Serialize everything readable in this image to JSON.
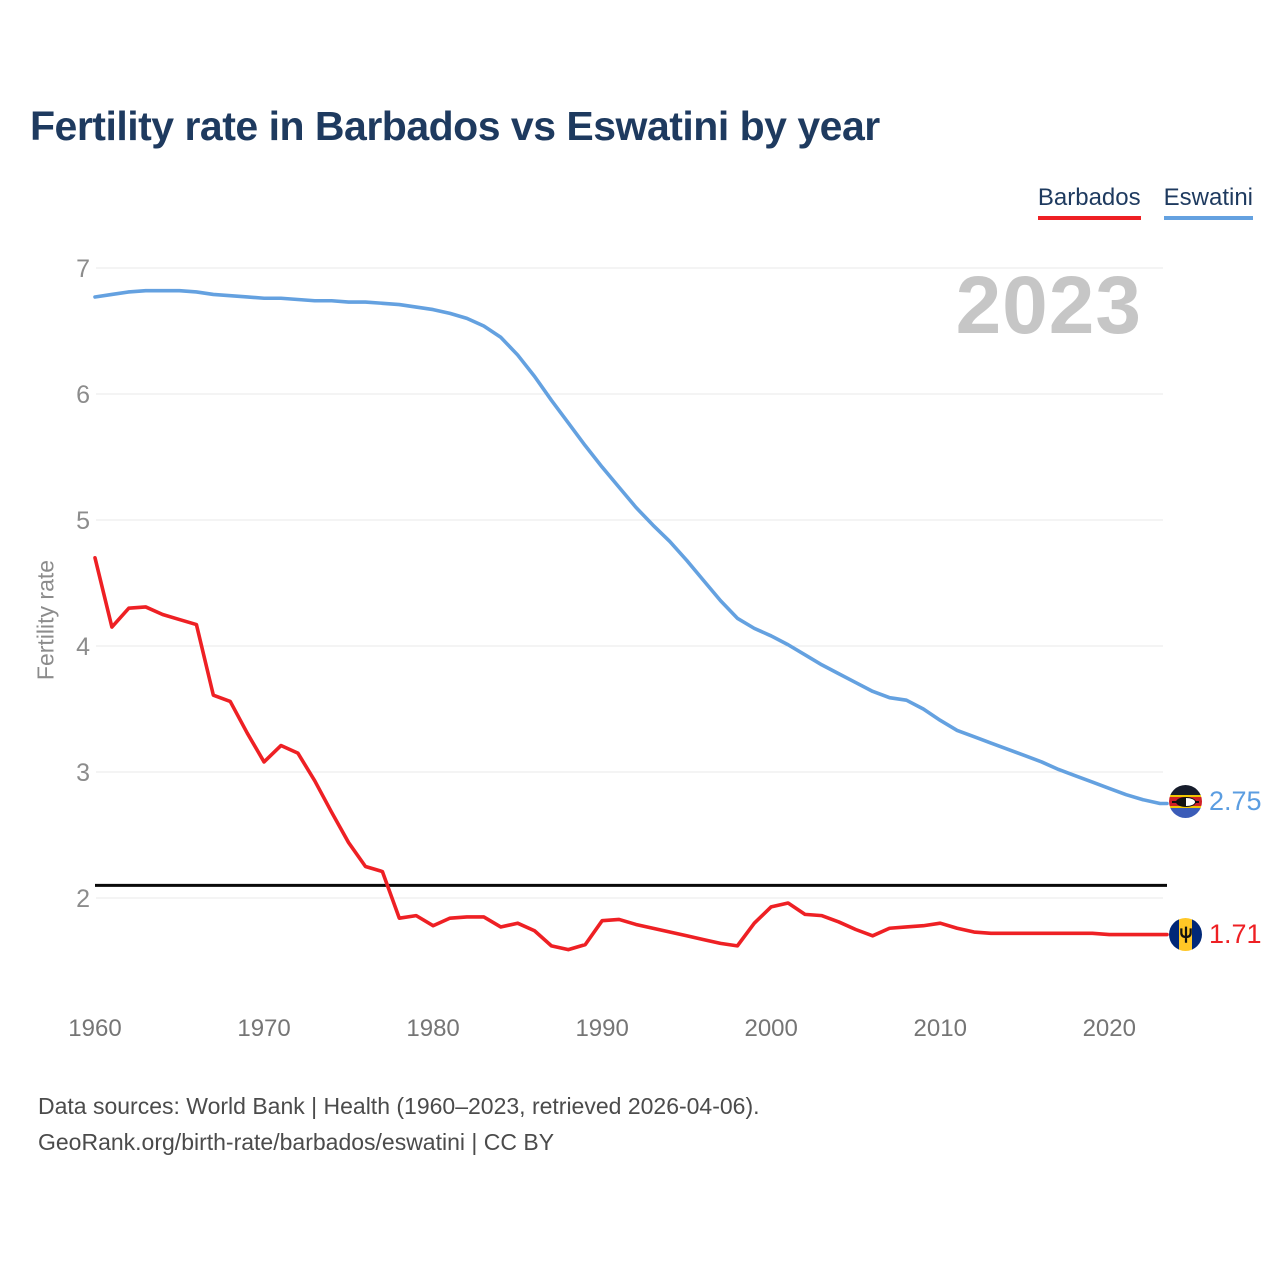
{
  "title": "Fertility rate in Barbados vs Eswatini by year",
  "watermark": "2023",
  "legend": {
    "items": [
      {
        "label": "Barbados",
        "color": "#ee2024"
      },
      {
        "label": "Eswatini",
        "color": "#64a1e0"
      }
    ]
  },
  "y_axis": {
    "label": "Fertility rate",
    "ticks": [
      7,
      6,
      5,
      4,
      3,
      2
    ]
  },
  "x_axis": {
    "ticks": [
      1960,
      1970,
      1980,
      1990,
      2000,
      2010,
      2020
    ]
  },
  "end_labels": [
    {
      "series": "Eswatini",
      "value": "2.75",
      "flag": "eswatini-flag"
    },
    {
      "series": "Barbados",
      "value": "1.71",
      "flag": "barbados-flag"
    }
  ],
  "footer": {
    "line1": "Data sources: World Bank | Health (1960–2023, retrieved 2026-04-06).",
    "line2": "GeoRank.org/birth-rate/barbados/eswatini | CC BY"
  },
  "colors": {
    "barbados_line": "#ee2024",
    "eswatini_line": "#64a1e0",
    "reference_line": "#0a0a0a",
    "gridline": "#e8e8e8",
    "tick_label": "#8c8c8c",
    "watermark": "#c6c6c6",
    "title_text": "#1e3a5f"
  },
  "chart_data": {
    "type": "line",
    "title": "Fertility rate in Barbados vs Eswatini by year",
    "xlabel": "",
    "ylabel": "Fertility rate",
    "grid": true,
    "legend_position": "top-right",
    "annotation": "2023",
    "reference_line": 2.1,
    "xlim": [
      1960,
      2023
    ],
    "yticks": [
      2,
      3,
      4,
      5,
      6,
      7
    ],
    "xticks": [
      1960,
      1970,
      1980,
      1990,
      2000,
      2010,
      2020
    ],
    "x": [
      1960,
      1961,
      1962,
      1963,
      1964,
      1965,
      1966,
      1967,
      1968,
      1969,
      1970,
      1971,
      1972,
      1973,
      1974,
      1975,
      1976,
      1977,
      1978,
      1979,
      1980,
      1981,
      1982,
      1983,
      1984,
      1985,
      1986,
      1987,
      1988,
      1989,
      1990,
      1991,
      1992,
      1993,
      1994,
      1995,
      1996,
      1997,
      1998,
      1999,
      2000,
      2001,
      2002,
      2003,
      2004,
      2005,
      2006,
      2007,
      2008,
      2009,
      2010,
      2011,
      2012,
      2013,
      2014,
      2015,
      2016,
      2017,
      2018,
      2019,
      2020,
      2021,
      2022,
      2023
    ],
    "series": [
      {
        "name": "Barbados",
        "color": "#ee2024",
        "end_value": 1.71,
        "values": [
          4.7,
          4.15,
          4.3,
          4.31,
          4.25,
          4.21,
          4.17,
          3.61,
          3.56,
          3.31,
          3.08,
          3.21,
          3.15,
          2.93,
          2.68,
          2.44,
          2.25,
          2.21,
          1.84,
          1.86,
          1.78,
          1.84,
          1.85,
          1.85,
          1.77,
          1.8,
          1.74,
          1.62,
          1.59,
          1.63,
          1.82,
          1.83,
          1.79,
          1.76,
          1.73,
          1.7,
          1.67,
          1.64,
          1.62,
          1.8,
          1.93,
          1.96,
          1.87,
          1.86,
          1.81,
          1.75,
          1.7,
          1.76,
          1.77,
          1.78,
          1.8,
          1.76,
          1.73,
          1.72,
          1.72,
          1.72,
          1.72,
          1.72,
          1.72,
          1.72,
          1.71,
          1.71,
          1.71,
          1.71
        ]
      },
      {
        "name": "Eswatini",
        "color": "#64a1e0",
        "end_value": 2.75,
        "values": [
          6.77,
          6.79,
          6.81,
          6.82,
          6.82,
          6.82,
          6.81,
          6.79,
          6.78,
          6.77,
          6.76,
          6.76,
          6.75,
          6.74,
          6.74,
          6.73,
          6.73,
          6.72,
          6.71,
          6.69,
          6.67,
          6.64,
          6.6,
          6.54,
          6.45,
          6.31,
          6.14,
          5.95,
          5.77,
          5.59,
          5.42,
          5.26,
          5.1,
          4.96,
          4.83,
          4.68,
          4.52,
          4.36,
          4.22,
          4.14,
          4.08,
          4.01,
          3.93,
          3.85,
          3.78,
          3.71,
          3.64,
          3.59,
          3.57,
          3.5,
          3.41,
          3.33,
          3.28,
          3.23,
          3.18,
          3.13,
          3.08,
          3.02,
          2.97,
          2.92,
          2.87,
          2.82,
          2.78,
          2.75
        ]
      }
    ]
  }
}
